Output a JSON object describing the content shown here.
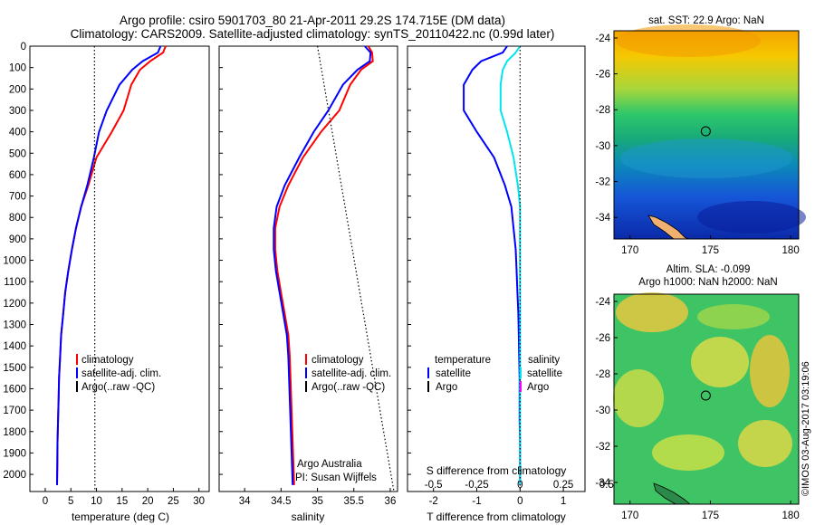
{
  "figure": {
    "title_line1": "Argo profile: csiro 5901703_80 21-Apr-2011 29.2S 174.715E (DM data)",
    "title_line2": "Climatology: CARS2009. Satellite-adjusted climatology: synTS_20110422.nc (0.99d later)",
    "credit": "Argo Australia",
    "pi": "PI: Susan Wijffels",
    "stamp": "©IMOS 03-Aug-2017 03:19:06"
  },
  "colors": {
    "climatology": "#ff0000",
    "satellite_adj": "#0000ff",
    "argo": "#000000",
    "s_satellite": "#00e5ee",
    "s_argo": "#ff00ff",
    "axes": "#000000"
  },
  "legend_profile": {
    "climatology": "climatology",
    "satellite": "satellite-adj. clim.",
    "argo": "Argo(..raw -QC)"
  },
  "legend_diff": {
    "temperature_header": "temperature",
    "salinity_header": "salinity",
    "satellite": "satellite",
    "argo": "Argo"
  },
  "chart_data": [
    {
      "type": "line",
      "panel": "temperature",
      "xlabel": "temperature (deg C)",
      "ylabel": "",
      "xlim": [
        -3,
        32
      ],
      "ylim": [
        2080,
        0
      ],
      "xticks": [
        "0",
        "5",
        "10",
        "15",
        "20",
        "25",
        "30"
      ],
      "yticks": [
        "0",
        "100",
        "200",
        "300",
        "400",
        "500",
        "600",
        "700",
        "800",
        "900",
        "1000",
        "1100",
        "1200",
        "1300",
        "1400",
        "1500",
        "1600",
        "1700",
        "1800",
        "1900",
        "2000"
      ],
      "series": [
        {
          "name": "climatology",
          "color_key": "climatology",
          "x": [
            23.5,
            23.0,
            20.5,
            18.5,
            16.8,
            15.3,
            13.0,
            10.0,
            8.4,
            7.0,
            6.0,
            5.2,
            4.5,
            3.9,
            3.5,
            3.1,
            2.9,
            2.7,
            2.6,
            2.5,
            2.4,
            2.35,
            2.3
          ],
          "y": [
            0,
            30,
            70,
            110,
            180,
            300,
            400,
            520,
            650,
            750,
            850,
            950,
            1050,
            1150,
            1250,
            1350,
            1450,
            1550,
            1650,
            1750,
            1850,
            1950,
            2050
          ]
        },
        {
          "name": "satellite-adj. clim.",
          "color_key": "satellite_adj",
          "x": [
            22.5,
            22.0,
            19.0,
            17.0,
            14.5,
            12.0,
            10.5,
            9.5,
            8.2,
            7.0,
            6.0,
            5.2,
            4.5,
            3.9,
            3.5,
            3.1,
            2.9,
            2.7,
            2.6,
            2.5,
            2.4,
            2.35,
            2.3
          ],
          "y": [
            0,
            30,
            70,
            110,
            180,
            300,
            400,
            520,
            650,
            750,
            850,
            950,
            1050,
            1150,
            1250,
            1350,
            1450,
            1550,
            1650,
            1750,
            1850,
            1950,
            2050
          ]
        },
        {
          "name": "Argo(..raw -QC)",
          "color_key": "argo",
          "style": "dotted",
          "x": [
            9.6,
            9.7
          ],
          "y": [
            0,
            2080
          ]
        }
      ]
    },
    {
      "type": "line",
      "panel": "salinity",
      "xlabel": "salinity",
      "ylabel": "",
      "xlim": [
        33.65,
        36.1
      ],
      "ylim": [
        2080,
        0
      ],
      "xticks": [
        "34",
        "34.5",
        "35",
        "35.5",
        "36"
      ],
      "series": [
        {
          "name": "climatology",
          "color_key": "climatology",
          "x": [
            35.7,
            35.75,
            35.76,
            35.6,
            35.45,
            35.3,
            35.05,
            34.8,
            34.6,
            34.48,
            34.42,
            34.42,
            34.45,
            34.5,
            34.55,
            34.6,
            34.62,
            34.63,
            34.64,
            34.65,
            34.66,
            34.67,
            34.68
          ],
          "y": [
            0,
            30,
            70,
            110,
            180,
            300,
            400,
            520,
            650,
            750,
            850,
            950,
            1050,
            1150,
            1250,
            1350,
            1450,
            1550,
            1650,
            1750,
            1850,
            1950,
            2050
          ]
        },
        {
          "name": "satellite-adj. clim.",
          "color_key": "satellite_adj",
          "x": [
            35.65,
            35.73,
            35.72,
            35.55,
            35.35,
            35.15,
            34.95,
            34.75,
            34.55,
            34.44,
            34.4,
            34.4,
            34.43,
            34.48,
            34.53,
            34.58,
            34.6,
            34.61,
            34.62,
            34.63,
            34.64,
            34.65,
            34.66
          ],
          "y": [
            0,
            30,
            70,
            110,
            180,
            300,
            400,
            520,
            650,
            750,
            850,
            950,
            1050,
            1150,
            1250,
            1350,
            1450,
            1550,
            1650,
            1750,
            1850,
            1950,
            2050
          ]
        },
        {
          "name": "Argo(..raw -QC)",
          "color_key": "argo",
          "style": "dotted",
          "x": [
            35.0,
            36.05
          ],
          "y": [
            0,
            2080
          ]
        }
      ]
    },
    {
      "type": "line",
      "panel": "difference",
      "xlabel": "T difference from climatology",
      "xlabel_top": "S difference from climatology",
      "xlim": [
        -2.6,
        1.5
      ],
      "ylim": [
        2080,
        0
      ],
      "xticks": [
        "-2",
        "-1",
        "0",
        "1"
      ],
      "xticks_s": [
        "-0.5",
        "-0.25",
        "0",
        "0.25",
        "0.5"
      ],
      "series": [
        {
          "name": "temperature satellite",
          "color_key": "satellite_adj",
          "x": [
            -0.3,
            -0.4,
            -0.9,
            -1.1,
            -1.3,
            -1.3,
            -1.0,
            -0.6,
            -0.35,
            -0.2,
            -0.15,
            -0.1,
            -0.08,
            -0.06,
            -0.04,
            -0.03,
            -0.02,
            -0.01,
            -0.01,
            -0.01,
            0.0,
            0.0,
            0.0
          ],
          "y": [
            0,
            30,
            70,
            110,
            180,
            300,
            400,
            520,
            650,
            750,
            850,
            950,
            1050,
            1150,
            1250,
            1350,
            1450,
            1550,
            1650,
            1750,
            1850,
            1950,
            2050
          ]
        },
        {
          "name": "salinity satellite",
          "color_key": "s_satellite",
          "x": [
            0.0,
            -0.1,
            -0.3,
            -0.4,
            -0.45,
            -0.45,
            -0.3,
            -0.15,
            -0.05,
            0.0,
            0.0,
            0.0,
            0.0,
            0.0,
            0.0,
            0.0,
            0.0,
            0.0,
            0.0,
            0.0,
            0.0,
            0.0,
            0.0
          ],
          "y": [
            0,
            30,
            70,
            110,
            180,
            300,
            400,
            520,
            650,
            750,
            850,
            950,
            1050,
            1150,
            1250,
            1350,
            1450,
            1550,
            1650,
            1750,
            1850,
            1950,
            2050
          ]
        },
        {
          "name": "zero line",
          "color_key": "argo",
          "style": "dotted",
          "x": [
            0,
            0
          ],
          "y": [
            0,
            2080
          ]
        }
      ]
    },
    {
      "type": "heatmap",
      "panel": "sst map",
      "title": "sat. SST: 22.9 Argo: NaN",
      "xlim": [
        169,
        180.5
      ],
      "ylim": [
        -35.2,
        -23.6
      ],
      "xticks": [
        "170",
        "175",
        "180"
      ],
      "yticks": [
        "-24",
        "-26",
        "-28",
        "-30",
        "-32",
        "-34"
      ],
      "marker": {
        "x": 174.715,
        "y": -29.2
      }
    },
    {
      "type": "heatmap",
      "panel": "sla map",
      "title": "Altim. SLA: -0.099",
      "subtitle": "Argo h1000: NaN h2000: NaN",
      "xlim": [
        169,
        180.5
      ],
      "ylim": [
        -35.2,
        -23.6
      ],
      "xticks": [
        "170",
        "175",
        "180"
      ],
      "yticks": [
        "-24",
        "-26",
        "-28",
        "-30",
        "-32",
        "-34"
      ],
      "marker": {
        "x": 174.715,
        "y": -29.2
      }
    }
  ]
}
